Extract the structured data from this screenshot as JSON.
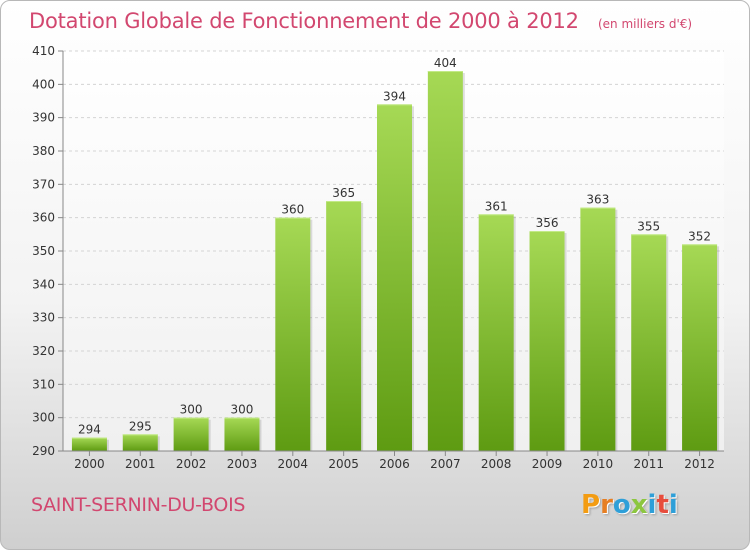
{
  "header": {
    "title": "Dotation Globale de Fonctionnement de 2000 à 2012",
    "subtitle": "(en milliers d'€)"
  },
  "footer": {
    "commune": "SAINT-SERNIN-DU-BOIS",
    "logo_text": "Proxiti",
    "logo_colors": [
      "#f39c12",
      "#e67e22",
      "#2e9fd8",
      "#8cc63f",
      "#2e9fd8",
      "#e74c3c",
      "#2e9fd8"
    ]
  },
  "chart_data": {
    "type": "bar",
    "title": "Dotation Globale de Fonctionnement de 2000 à 2012",
    "subtitle": "(en milliers d'€)",
    "categories": [
      "2000",
      "2001",
      "2002",
      "2003",
      "2004",
      "2005",
      "2006",
      "2007",
      "2008",
      "2009",
      "2010",
      "2011",
      "2012"
    ],
    "values": [
      294,
      295,
      300,
      300,
      360,
      365,
      394,
      404,
      361,
      356,
      363,
      355,
      352
    ],
    "ylim": [
      290,
      410
    ],
    "yticks": [
      290,
      300,
      310,
      320,
      330,
      340,
      350,
      360,
      370,
      380,
      390,
      400,
      410
    ],
    "grid": true,
    "legend": "none",
    "bar_color_top": "#a6d955",
    "bar_color_bottom": "#5e9b12",
    "label_color": "#333333"
  }
}
